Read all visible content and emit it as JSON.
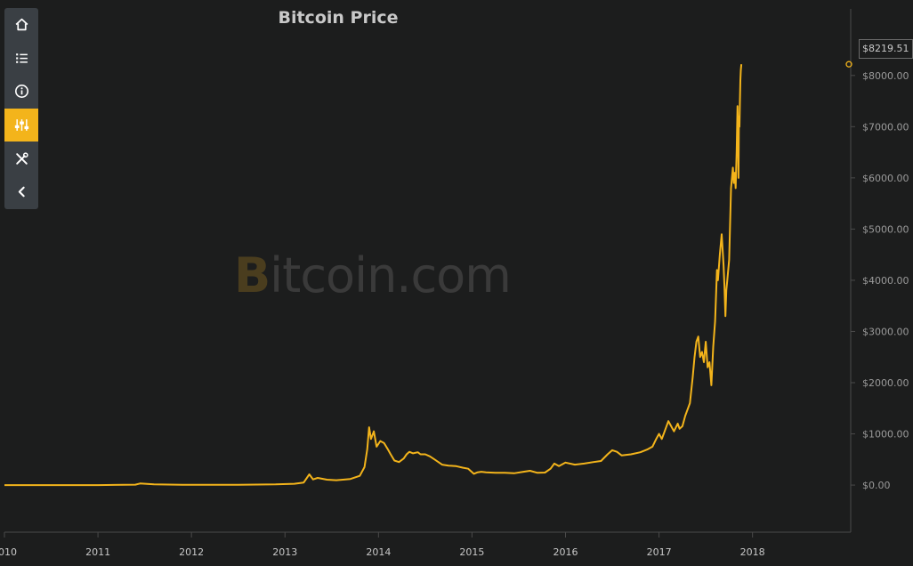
{
  "toolbar": {
    "items": [
      {
        "icon": "home-icon"
      },
      {
        "icon": "list-icon"
      },
      {
        "icon": "info-icon"
      },
      {
        "icon": "sliders-icon",
        "active": true
      },
      {
        "icon": "tools-icon"
      },
      {
        "icon": "chevron-left-icon"
      }
    ]
  },
  "watermark": {
    "symbol": "B",
    "text": "itcoin.com"
  },
  "last_price_label": "$8219.51",
  "colors": {
    "line": "#f3b41b",
    "background": "#1c1d1d",
    "toolbar": "#3a3f44",
    "accent": "#f3b41b"
  },
  "chart_data": {
    "type": "line",
    "title": "Bitcoin Price",
    "xlabel": "",
    "ylabel": "",
    "xlim": [
      2010,
      2019.05
    ],
    "ylim": [
      -920,
      9300
    ],
    "y_ticks": [
      0,
      1000,
      2000,
      3000,
      4000,
      5000,
      6000,
      7000,
      8000
    ],
    "y_tick_labels": [
      "$0.00",
      "$1000.00",
      "$2000.00",
      "$3000.00",
      "$4000.00",
      "$5000.00",
      "$6000.00",
      "$7000.00",
      "$8000.00"
    ],
    "x_ticks": [
      2010,
      2011,
      2012,
      2013,
      2014,
      2015,
      2016,
      2017,
      2018
    ],
    "x_tick_labels": [
      "2010",
      "2011",
      "2012",
      "2013",
      "2014",
      "2015",
      "2016",
      "2017",
      "2018"
    ],
    "grid": false,
    "legend": "none",
    "last_value": 8219.51,
    "series": [
      {
        "x": [
          2010.0,
          2010.5,
          2011.0,
          2011.4,
          2011.45,
          2011.6,
          2011.9,
          2012.5,
          2012.9,
          2013.1,
          2013.2,
          2013.26,
          2013.3,
          2013.35,
          2013.45,
          2013.55,
          2013.7,
          2013.8,
          2013.85,
          2013.88,
          2013.9,
          2013.92,
          2013.95,
          2013.98,
          2014.02,
          2014.06,
          2014.1,
          2014.13,
          2014.17,
          2014.22,
          2014.27,
          2014.3,
          2014.33,
          2014.37,
          2014.42,
          2014.45,
          2014.5,
          2014.55,
          2014.6,
          2014.68,
          2014.75,
          2014.83,
          2014.9,
          2014.96,
          2015.02,
          2015.06,
          2015.1,
          2015.15,
          2015.25,
          2015.35,
          2015.45,
          2015.55,
          2015.62,
          2015.7,
          2015.78,
          2015.84,
          2015.88,
          2015.93,
          2016.0,
          2016.1,
          2016.2,
          2016.3,
          2016.38,
          2016.45,
          2016.5,
          2016.55,
          2016.6,
          2016.7,
          2016.8,
          2016.88,
          2016.93,
          2016.97,
          2017.0,
          2017.03,
          2017.06,
          2017.1,
          2017.13,
          2017.16,
          2017.2,
          2017.22,
          2017.25,
          2017.28,
          2017.33,
          2017.36,
          2017.38,
          2017.4,
          2017.42,
          2017.44,
          2017.46,
          2017.48,
          2017.5,
          2017.52,
          2017.54,
          2017.56,
          2017.58,
          2017.6,
          2017.62,
          2017.63,
          2017.65,
          2017.67,
          2017.69,
          2017.7,
          2017.71,
          2017.72,
          2017.73,
          2017.75,
          2017.77,
          2017.79,
          2017.8,
          2017.81,
          2017.82,
          2017.83,
          2017.84,
          2017.845,
          2017.85,
          2017.855,
          2017.86,
          2017.865,
          2017.87,
          2017.875,
          2017.88
        ],
        "y": [
          0,
          0,
          0,
          8,
          30,
          14,
          5,
          7,
          13,
          25,
          50,
          210,
          110,
          140,
          105,
          95,
          120,
          180,
          350,
          700,
          1130,
          900,
          1050,
          750,
          860,
          820,
          700,
          600,
          480,
          450,
          520,
          600,
          650,
          620,
          640,
          600,
          600,
          560,
          500,
          400,
          380,
          370,
          340,
          320,
          220,
          250,
          260,
          250,
          240,
          240,
          230,
          260,
          280,
          240,
          245,
          320,
          420,
          370,
          440,
          400,
          420,
          450,
          470,
          600,
          680,
          650,
          580,
          600,
          640,
          700,
          750,
          900,
          1000,
          900,
          1050,
          1250,
          1150,
          1050,
          1200,
          1100,
          1150,
          1350,
          1600,
          2100,
          2500,
          2800,
          2900,
          2500,
          2600,
          2400,
          2800,
          2300,
          2400,
          1950,
          2700,
          3200,
          4200,
          4000,
          4500,
          4900,
          4300,
          3900,
          3300,
          3800,
          4000,
          4400,
          5800,
          6200,
          5900,
          6100,
          5800,
          6500,
          7400,
          7000,
          6000,
          7200,
          7000,
          7500,
          7900,
          8100,
          8219.51
        ]
      }
    ]
  }
}
